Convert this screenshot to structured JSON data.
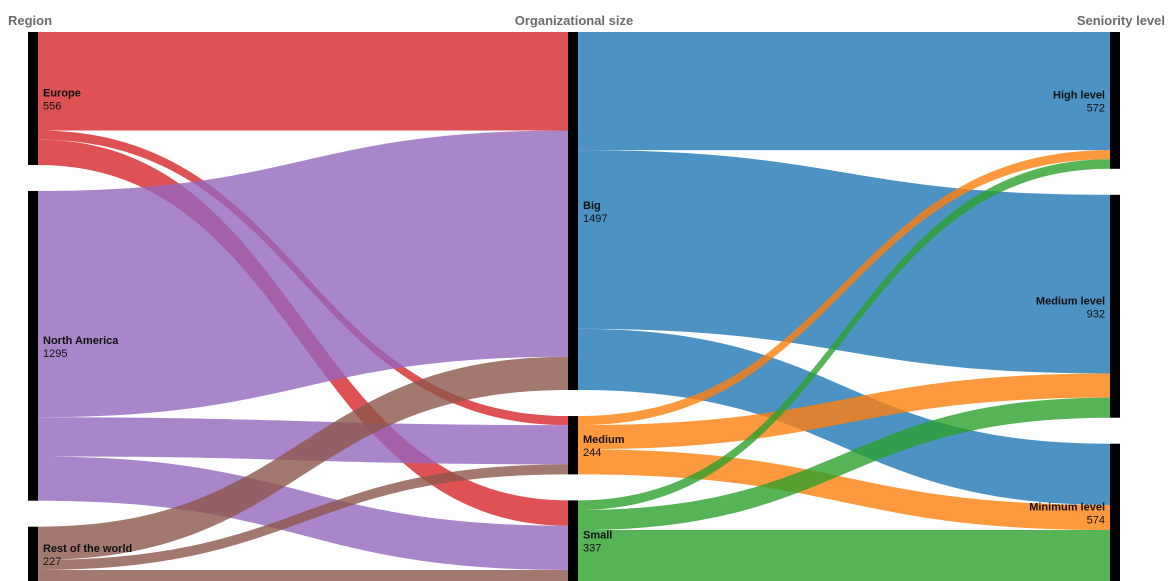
{
  "chart_data": {
    "type": "sankey",
    "columns": [
      "Region",
      "Organizational size",
      "Seniority level"
    ],
    "nodes": [
      {
        "id": "europe",
        "name": "Europe",
        "value": 556,
        "column": 0
      },
      {
        "id": "north_america",
        "name": "North America",
        "value": 1295,
        "column": 0
      },
      {
        "id": "rest_world",
        "name": "Rest of the world",
        "value": 227,
        "column": 0
      },
      {
        "id": "big",
        "name": "Big",
        "value": 1497,
        "column": 1
      },
      {
        "id": "medium",
        "name": "Medium",
        "value": 244,
        "column": 1
      },
      {
        "id": "small",
        "name": "Small",
        "value": 337,
        "column": 1
      },
      {
        "id": "high",
        "name": "High level",
        "value": 572,
        "column": 2
      },
      {
        "id": "med_level",
        "name": "Medium level",
        "value": 932,
        "column": 2
      },
      {
        "id": "min_level",
        "name": "Minimum level",
        "value": 574,
        "column": 2
      }
    ],
    "links": [
      {
        "source": "europe",
        "target": "big",
        "value": 412
      },
      {
        "source": "europe",
        "target": "medium",
        "value": 38
      },
      {
        "source": "europe",
        "target": "small",
        "value": 106
      },
      {
        "source": "north_america",
        "target": "big",
        "value": 946
      },
      {
        "source": "north_america",
        "target": "medium",
        "value": 164
      },
      {
        "source": "north_america",
        "target": "small",
        "value": 185
      },
      {
        "source": "rest_world",
        "target": "big",
        "value": 139
      },
      {
        "source": "rest_world",
        "target": "medium",
        "value": 42
      },
      {
        "source": "rest_world",
        "target": "small",
        "value": 46
      },
      {
        "source": "big",
        "target": "high",
        "value": 494
      },
      {
        "source": "big",
        "target": "med_level",
        "value": 747
      },
      {
        "source": "big",
        "target": "min_level",
        "value": 256
      },
      {
        "source": "medium",
        "target": "high",
        "value": 38
      },
      {
        "source": "medium",
        "target": "med_level",
        "value": 101
      },
      {
        "source": "medium",
        "target": "min_level",
        "value": 105
      },
      {
        "source": "small",
        "target": "high",
        "value": 40
      },
      {
        "source": "small",
        "target": "med_level",
        "value": 84
      },
      {
        "source": "small",
        "target": "min_level",
        "value": 213
      }
    ],
    "colors": {
      "europe": "#d62728",
      "north_america": "#9467bd",
      "rest_world": "#8c564b",
      "big": "#1f77b4",
      "medium": "#ff7f0e",
      "small": "#2ca02c"
    }
  }
}
